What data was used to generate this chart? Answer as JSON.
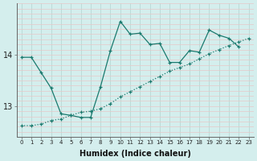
{
  "xlabel": "Humidex (Indice chaleur)",
  "bg_color": "#d4eeed",
  "grid_color_v": "#b8d8d5",
  "grid_color_h": "#e8c8c8",
  "line_color": "#1a7a6e",
  "line1_x": [
    0,
    1,
    2,
    3,
    4,
    5,
    6,
    7,
    8,
    9,
    10,
    11,
    12,
    13,
    14,
    15,
    16,
    17,
    18,
    19,
    20,
    21,
    22,
    23
  ],
  "line1_y": [
    13.95,
    13.95,
    13.65,
    13.35,
    12.85,
    12.82,
    12.78,
    12.78,
    13.38,
    14.08,
    14.65,
    14.4,
    14.42,
    14.2,
    14.22,
    13.85,
    13.85,
    14.08,
    14.05,
    14.48,
    14.38,
    14.32,
    14.15,
    null
  ],
  "line2_x": [
    0,
    1,
    2,
    3,
    4,
    5,
    6,
    7,
    8,
    9,
    10,
    11,
    12,
    13,
    14,
    15,
    16,
    17,
    18,
    19,
    20,
    21,
    22,
    23
  ],
  "line2_y": [
    12.62,
    12.62,
    12.65,
    12.72,
    12.75,
    12.82,
    12.88,
    12.9,
    12.95,
    13.05,
    13.18,
    13.28,
    13.38,
    13.48,
    13.58,
    13.68,
    13.75,
    13.82,
    13.92,
    14.02,
    14.1,
    14.18,
    14.25,
    14.32
  ],
  "yticks": [
    13,
    14
  ],
  "ylim": [
    12.4,
    15.0
  ],
  "xlim": [
    -0.5,
    23.5
  ],
  "xticks": [
    0,
    1,
    2,
    3,
    4,
    5,
    6,
    7,
    8,
    9,
    10,
    11,
    12,
    13,
    14,
    15,
    16,
    17,
    18,
    19,
    20,
    21,
    22,
    23
  ]
}
